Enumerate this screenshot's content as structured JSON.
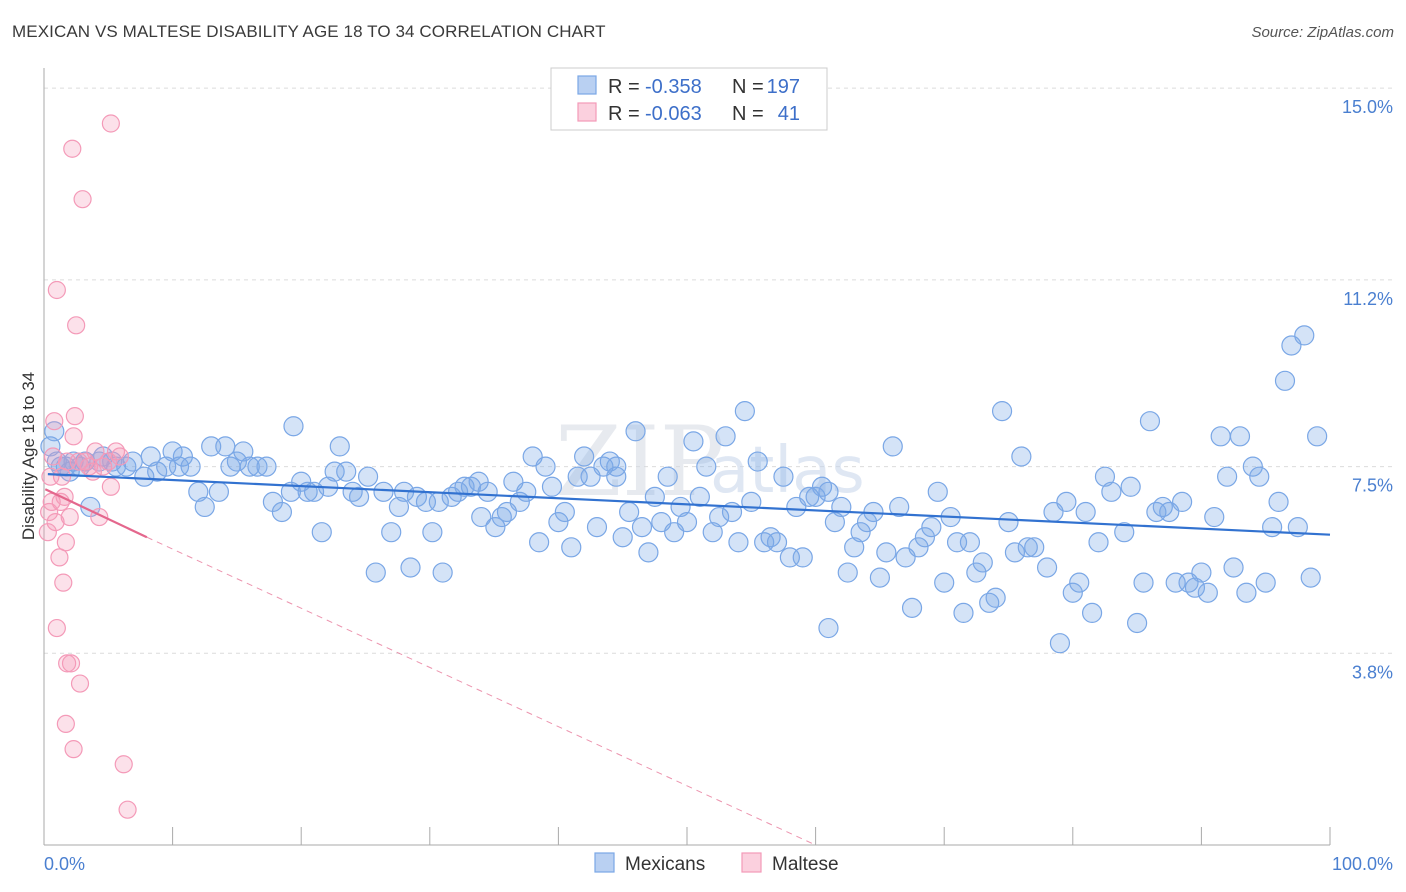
{
  "chart_data": {
    "type": "scatter",
    "title": "MEXICAN VS MALTESE DISABILITY AGE 18 TO 34 CORRELATION CHART",
    "source": "Source: ZipAtlas.com",
    "ylabel": "Disability Age 18 to 34",
    "xlabel": "",
    "xlim": [
      0,
      100
    ],
    "ylim": [
      0,
      15.4
    ],
    "x_tick_labels": [
      "0.0%",
      "100.0%"
    ],
    "y_ticks": [
      {
        "value": 3.8,
        "label": "3.8%"
      },
      {
        "value": 7.5,
        "label": "7.5%"
      },
      {
        "value": 11.2,
        "label": "11.2%"
      },
      {
        "value": 15.0,
        "label": "15.0%"
      }
    ],
    "legend": {
      "rows": [
        {
          "r_label": "R =",
          "r_value": "-0.358",
          "n_label": "N =",
          "n_value": "197"
        },
        {
          "r_label": "R =",
          "r_value": "-0.063",
          "n_label": "N =",
          "n_value": "41"
        }
      ]
    },
    "series": [
      {
        "name": "Mexicans",
        "color": "#7aa7e6",
        "line_color": "#3272d0",
        "trend": {
          "x0": 0.3,
          "y0": 7.35,
          "x1": 100,
          "y1": 6.15
        },
        "points": [
          [
            0.5,
            7.9
          ],
          [
            0.8,
            8.2
          ],
          [
            1.0,
            7.6
          ],
          [
            1.3,
            7.5
          ],
          [
            1.7,
            7.5
          ],
          [
            2.0,
            7.4
          ],
          [
            2.3,
            7.6
          ],
          [
            2.8,
            7.5
          ],
          [
            3.2,
            7.6
          ],
          [
            3.6,
            6.7
          ],
          [
            4.3,
            7.6
          ],
          [
            4.6,
            7.7
          ],
          [
            5.3,
            7.6
          ],
          [
            5.6,
            7.5
          ],
          [
            6.4,
            7.5
          ],
          [
            6.9,
            7.6
          ],
          [
            7.8,
            7.3
          ],
          [
            8.3,
            7.7
          ],
          [
            8.8,
            7.4
          ],
          [
            9.5,
            7.5
          ],
          [
            10.0,
            7.8
          ],
          [
            10.5,
            7.5
          ],
          [
            10.8,
            7.7
          ],
          [
            11.4,
            7.5
          ],
          [
            12.0,
            7.0
          ],
          [
            12.5,
            6.7
          ],
          [
            13.0,
            7.9
          ],
          [
            13.6,
            7.0
          ],
          [
            14.1,
            7.9
          ],
          [
            14.5,
            7.5
          ],
          [
            15.0,
            7.6
          ],
          [
            15.5,
            7.8
          ],
          [
            16.0,
            7.5
          ],
          [
            16.6,
            7.5
          ],
          [
            17.3,
            7.5
          ],
          [
            17.8,
            6.8
          ],
          [
            18.5,
            6.6
          ],
          [
            19.2,
            7.0
          ],
          [
            19.4,
            8.3
          ],
          [
            20.0,
            7.2
          ],
          [
            20.5,
            7.0
          ],
          [
            21.0,
            7.0
          ],
          [
            21.6,
            6.2
          ],
          [
            22.1,
            7.1
          ],
          [
            22.6,
            7.4
          ],
          [
            23.0,
            7.9
          ],
          [
            23.5,
            7.4
          ],
          [
            24.0,
            7.0
          ],
          [
            24.5,
            6.9
          ],
          [
            25.2,
            7.3
          ],
          [
            25.8,
            5.4
          ],
          [
            26.4,
            7.0
          ],
          [
            27.0,
            6.2
          ],
          [
            27.6,
            6.7
          ],
          [
            28.0,
            7.0
          ],
          [
            28.5,
            5.5
          ],
          [
            29.0,
            6.9
          ],
          [
            29.7,
            6.8
          ],
          [
            30.2,
            6.2
          ],
          [
            30.7,
            6.8
          ],
          [
            31.0,
            5.4
          ],
          [
            31.7,
            6.9
          ],
          [
            32.2,
            7.0
          ],
          [
            32.7,
            7.1
          ],
          [
            33.2,
            7.1
          ],
          [
            33.8,
            7.2
          ],
          [
            34.0,
            6.5
          ],
          [
            34.5,
            7.0
          ],
          [
            35.1,
            6.3
          ],
          [
            35.6,
            6.5
          ],
          [
            36.0,
            6.6
          ],
          [
            36.5,
            7.2
          ],
          [
            37.0,
            6.8
          ],
          [
            37.5,
            7.0
          ],
          [
            38.0,
            7.7
          ],
          [
            38.5,
            6.0
          ],
          [
            39.0,
            7.5
          ],
          [
            39.5,
            7.1
          ],
          [
            40.0,
            6.4
          ],
          [
            40.5,
            6.6
          ],
          [
            41.0,
            5.9
          ],
          [
            41.5,
            7.3
          ],
          [
            42.0,
            7.7
          ],
          [
            42.5,
            7.3
          ],
          [
            43.0,
            6.3
          ],
          [
            43.5,
            7.5
          ],
          [
            44.0,
            7.6
          ],
          [
            44.5,
            7.3
          ],
          [
            45.0,
            6.1
          ],
          [
            45.5,
            6.6
          ],
          [
            46.0,
            8.2
          ],
          [
            46.5,
            6.3
          ],
          [
            47.0,
            5.8
          ],
          [
            47.5,
            6.9
          ],
          [
            48.0,
            6.4
          ],
          [
            48.5,
            7.3
          ],
          [
            49.0,
            6.2
          ],
          [
            49.5,
            6.7
          ],
          [
            50.0,
            6.4
          ],
          [
            50.5,
            8.0
          ],
          [
            51.0,
            6.9
          ],
          [
            51.5,
            7.5
          ],
          [
            52.0,
            6.2
          ],
          [
            52.5,
            6.5
          ],
          [
            53.0,
            8.1
          ],
          [
            53.5,
            6.6
          ],
          [
            54.0,
            6.0
          ],
          [
            54.5,
            8.6
          ],
          [
            55.0,
            6.8
          ],
          [
            55.5,
            7.6
          ],
          [
            56.0,
            6.0
          ],
          [
            56.5,
            6.1
          ],
          [
            57.0,
            6.0
          ],
          [
            57.5,
            7.3
          ],
          [
            58.0,
            5.7
          ],
          [
            58.5,
            6.7
          ],
          [
            59.0,
            5.7
          ],
          [
            59.5,
            6.9
          ],
          [
            60.0,
            6.9
          ],
          [
            60.5,
            7.1
          ],
          [
            61.0,
            4.3
          ],
          [
            61.5,
            6.4
          ],
          [
            62.0,
            6.7
          ],
          [
            62.5,
            5.4
          ],
          [
            63.0,
            5.9
          ],
          [
            63.5,
            6.2
          ],
          [
            64.0,
            6.4
          ],
          [
            64.5,
            6.6
          ],
          [
            65.0,
            5.3
          ],
          [
            65.5,
            5.8
          ],
          [
            66.0,
            7.9
          ],
          [
            66.5,
            6.7
          ],
          [
            67.0,
            5.7
          ],
          [
            67.5,
            4.7
          ],
          [
            68.0,
            5.9
          ],
          [
            68.5,
            6.1
          ],
          [
            69.0,
            6.3
          ],
          [
            69.5,
            7.0
          ],
          [
            70.0,
            5.2
          ],
          [
            70.5,
            6.5
          ],
          [
            71.0,
            6.0
          ],
          [
            71.5,
            4.6
          ],
          [
            72.0,
            6.0
          ],
          [
            72.5,
            5.4
          ],
          [
            73.0,
            5.6
          ],
          [
            73.5,
            4.8
          ],
          [
            74.0,
            4.9
          ],
          [
            74.5,
            8.6
          ],
          [
            75.0,
            6.4
          ],
          [
            75.5,
            5.8
          ],
          [
            76.0,
            7.7
          ],
          [
            76.5,
            5.9
          ],
          [
            77.0,
            5.9
          ],
          [
            78.0,
            5.5
          ],
          [
            78.5,
            6.6
          ],
          [
            79.0,
            4.0
          ],
          [
            79.5,
            6.8
          ],
          [
            80.0,
            5.0
          ],
          [
            80.5,
            5.2
          ],
          [
            81.0,
            6.6
          ],
          [
            81.5,
            4.6
          ],
          [
            82.0,
            6.0
          ],
          [
            82.5,
            7.3
          ],
          [
            83.0,
            7.0
          ],
          [
            84.0,
            6.2
          ],
          [
            84.5,
            7.1
          ],
          [
            85.0,
            4.4
          ],
          [
            85.5,
            5.2
          ],
          [
            86.0,
            8.4
          ],
          [
            86.5,
            6.6
          ],
          [
            87.0,
            6.7
          ],
          [
            87.5,
            6.6
          ],
          [
            88.0,
            5.2
          ],
          [
            88.5,
            6.8
          ],
          [
            89.0,
            5.2
          ],
          [
            89.5,
            5.1
          ],
          [
            90.0,
            5.4
          ],
          [
            90.5,
            5.0
          ],
          [
            91.0,
            6.5
          ],
          [
            91.5,
            8.1
          ],
          [
            92.0,
            7.3
          ],
          [
            92.5,
            5.5
          ],
          [
            93.0,
            8.1
          ],
          [
            93.5,
            5.0
          ],
          [
            94.0,
            7.5
          ],
          [
            94.5,
            7.3
          ],
          [
            95.0,
            5.2
          ],
          [
            95.5,
            6.3
          ],
          [
            96.0,
            6.8
          ],
          [
            96.5,
            9.2
          ],
          [
            97.0,
            9.9
          ],
          [
            97.5,
            6.3
          ],
          [
            98.0,
            10.1
          ],
          [
            98.5,
            5.3
          ],
          [
            99.0,
            8.1
          ],
          [
            61.0,
            7.0
          ],
          [
            44.5,
            7.5
          ]
        ]
      },
      {
        "name": "Maltese",
        "color": "#f49ab8",
        "line_color": "#e4678d",
        "trend": {
          "x0": 0.1,
          "y0": 7.05,
          "x1": 8.0,
          "y1": 6.1
        },
        "trend_dashed": {
          "x0": 8.0,
          "y0": 6.1,
          "x1": 60.0,
          "y1": 0.0
        },
        "points": [
          [
            0.3,
            6.2
          ],
          [
            0.4,
            6.6
          ],
          [
            0.5,
            7.3
          ],
          [
            0.6,
            6.8
          ],
          [
            0.7,
            7.7
          ],
          [
            0.8,
            8.4
          ],
          [
            0.9,
            6.4
          ],
          [
            1.0,
            11.0
          ],
          [
            1.0,
            4.3
          ],
          [
            1.2,
            5.7
          ],
          [
            1.3,
            6.8
          ],
          [
            1.4,
            7.3
          ],
          [
            1.5,
            5.2
          ],
          [
            1.6,
            6.9
          ],
          [
            1.7,
            6.0
          ],
          [
            1.8,
            7.6
          ],
          [
            1.8,
            3.6
          ],
          [
            2.0,
            6.5
          ],
          [
            2.1,
            3.6
          ],
          [
            2.2,
            13.8
          ],
          [
            2.3,
            8.1
          ],
          [
            2.4,
            8.5
          ],
          [
            2.5,
            10.3
          ],
          [
            2.7,
            7.6
          ],
          [
            2.8,
            3.2
          ],
          [
            3.0,
            12.8
          ],
          [
            3.2,
            7.6
          ],
          [
            3.5,
            7.5
          ],
          [
            3.8,
            7.4
          ],
          [
            4.0,
            7.8
          ],
          [
            4.3,
            6.5
          ],
          [
            4.6,
            7.5
          ],
          [
            5.0,
            7.6
          ],
          [
            5.2,
            7.1
          ],
          [
            5.6,
            7.8
          ],
          [
            5.9,
            7.7
          ],
          [
            6.2,
            1.6
          ],
          [
            6.5,
            0.7
          ],
          [
            5.2,
            14.3
          ],
          [
            1.7,
            2.4
          ],
          [
            2.3,
            1.9
          ]
        ]
      }
    ],
    "bottom_legend": [
      "Mexicans",
      "Maltese"
    ],
    "watermark": "ZIPatlas"
  }
}
